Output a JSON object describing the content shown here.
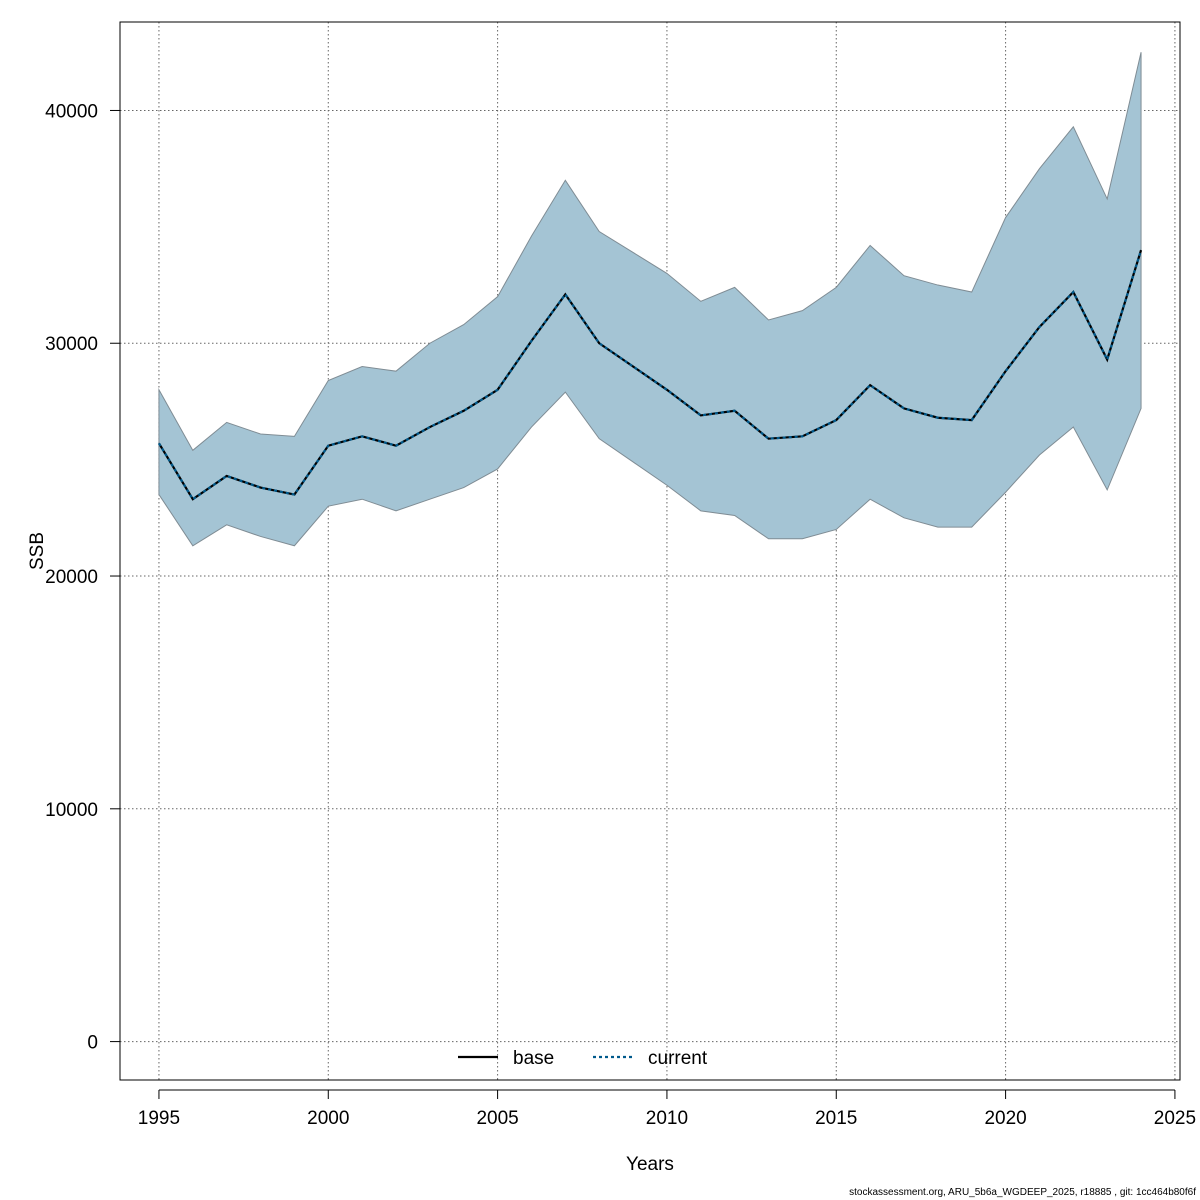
{
  "chart_data": {
    "type": "area",
    "xlabel": "Years",
    "ylabel": "SSB",
    "xlim": [
      1993.85,
      2025.15
    ],
    "ylim": [
      -1650,
      43800
    ],
    "x_ticks": [
      1995,
      2000,
      2005,
      2010,
      2015,
      2020,
      2025
    ],
    "y_ticks": [
      0,
      10000,
      20000,
      30000,
      40000
    ],
    "grid": true,
    "legend_position": "bottom",
    "colors": {
      "band": "#a4c4d4",
      "band_edge": "#7f8c94",
      "base": "#000000",
      "current": "#005a8c"
    },
    "x": [
      1995,
      1996,
      1997,
      1998,
      1999,
      2000,
      2001,
      2002,
      2003,
      2004,
      2005,
      2006,
      2007,
      2008,
      2009,
      2010,
      2011,
      2012,
      2013,
      2014,
      2015,
      2016,
      2017,
      2018,
      2019,
      2020,
      2021,
      2022,
      2023,
      2024
    ],
    "band": {
      "upper": [
        28000,
        25400,
        26600,
        26100,
        26000,
        28400,
        29000,
        28800,
        30000,
        30800,
        32000,
        34600,
        37000,
        34800,
        33900,
        33000,
        31800,
        32400,
        31000,
        31400,
        32400,
        34200,
        32900,
        32500,
        32200,
        35400,
        37500,
        39300,
        36200,
        42500
      ],
      "lower": [
        23500,
        21300,
        22200,
        21700,
        21300,
        23000,
        23300,
        22800,
        23300,
        23800,
        24600,
        26400,
        27900,
        25900,
        24900,
        23900,
        22800,
        22600,
        21600,
        21600,
        22000,
        23300,
        22500,
        22100,
        22100,
        23600,
        25200,
        26400,
        23700,
        27200
      ]
    },
    "series": [
      {
        "name": "base",
        "values": [
          25700,
          23300,
          24300,
          23800,
          23500,
          25600,
          26000,
          25600,
          26400,
          27100,
          28000,
          30100,
          32100,
          30000,
          29000,
          28000,
          26900,
          27100,
          25900,
          26000,
          26700,
          28200,
          27200,
          26800,
          26700,
          28800,
          30700,
          32200,
          29300,
          34000
        ]
      },
      {
        "name": "current",
        "values": [
          25700,
          23300,
          24300,
          23800,
          23500,
          25600,
          26000,
          25600,
          26400,
          27100,
          28000,
          30100,
          32100,
          30000,
          29000,
          28000,
          26900,
          27100,
          25900,
          26000,
          26700,
          28200,
          27200,
          26800,
          26700,
          28800,
          30700,
          32200,
          29300,
          34000
        ]
      }
    ]
  },
  "footer": "stockassessment.org, ARU_5b6a_WGDEEP_2025, r18885 , git: 1cc464b80f6f"
}
